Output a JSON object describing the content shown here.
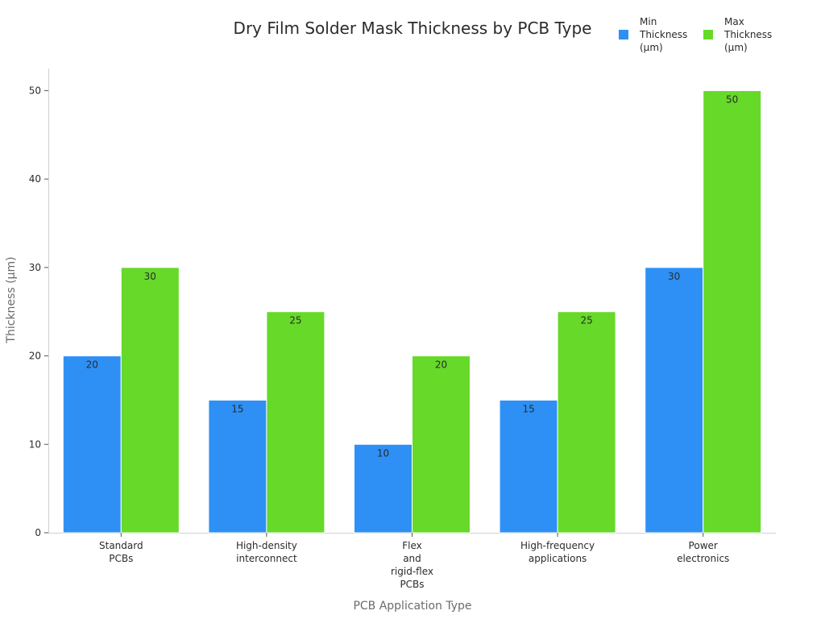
{
  "chart_data": {
    "type": "bar",
    "title": "Dry Film Solder Mask Thickness by PCB Type",
    "xlabel": "PCB Application Type",
    "ylabel": "Thickness (µm)",
    "ylim": [
      0,
      52.5
    ],
    "yticks": [
      0,
      10,
      20,
      30,
      40,
      50
    ],
    "grid": false,
    "legend_position": "top-right",
    "categories": [
      [
        "Standard",
        "PCBs"
      ],
      [
        "High-density",
        "interconnect"
      ],
      [
        "Flex",
        "and",
        "rigid-flex",
        "PCBs"
      ],
      [
        "High-frequency",
        "applications"
      ],
      [
        "Power",
        "electronics"
      ]
    ],
    "series": [
      {
        "name": [
          "Min",
          "Thickness",
          "(µm)"
        ],
        "color": "#2e90f5",
        "values": [
          20,
          15,
          10,
          15,
          30
        ]
      },
      {
        "name": [
          "Max",
          "Thickness",
          "(µm)"
        ],
        "color": "#66d929",
        "values": [
          30,
          25,
          20,
          25,
          50
        ]
      }
    ]
  }
}
